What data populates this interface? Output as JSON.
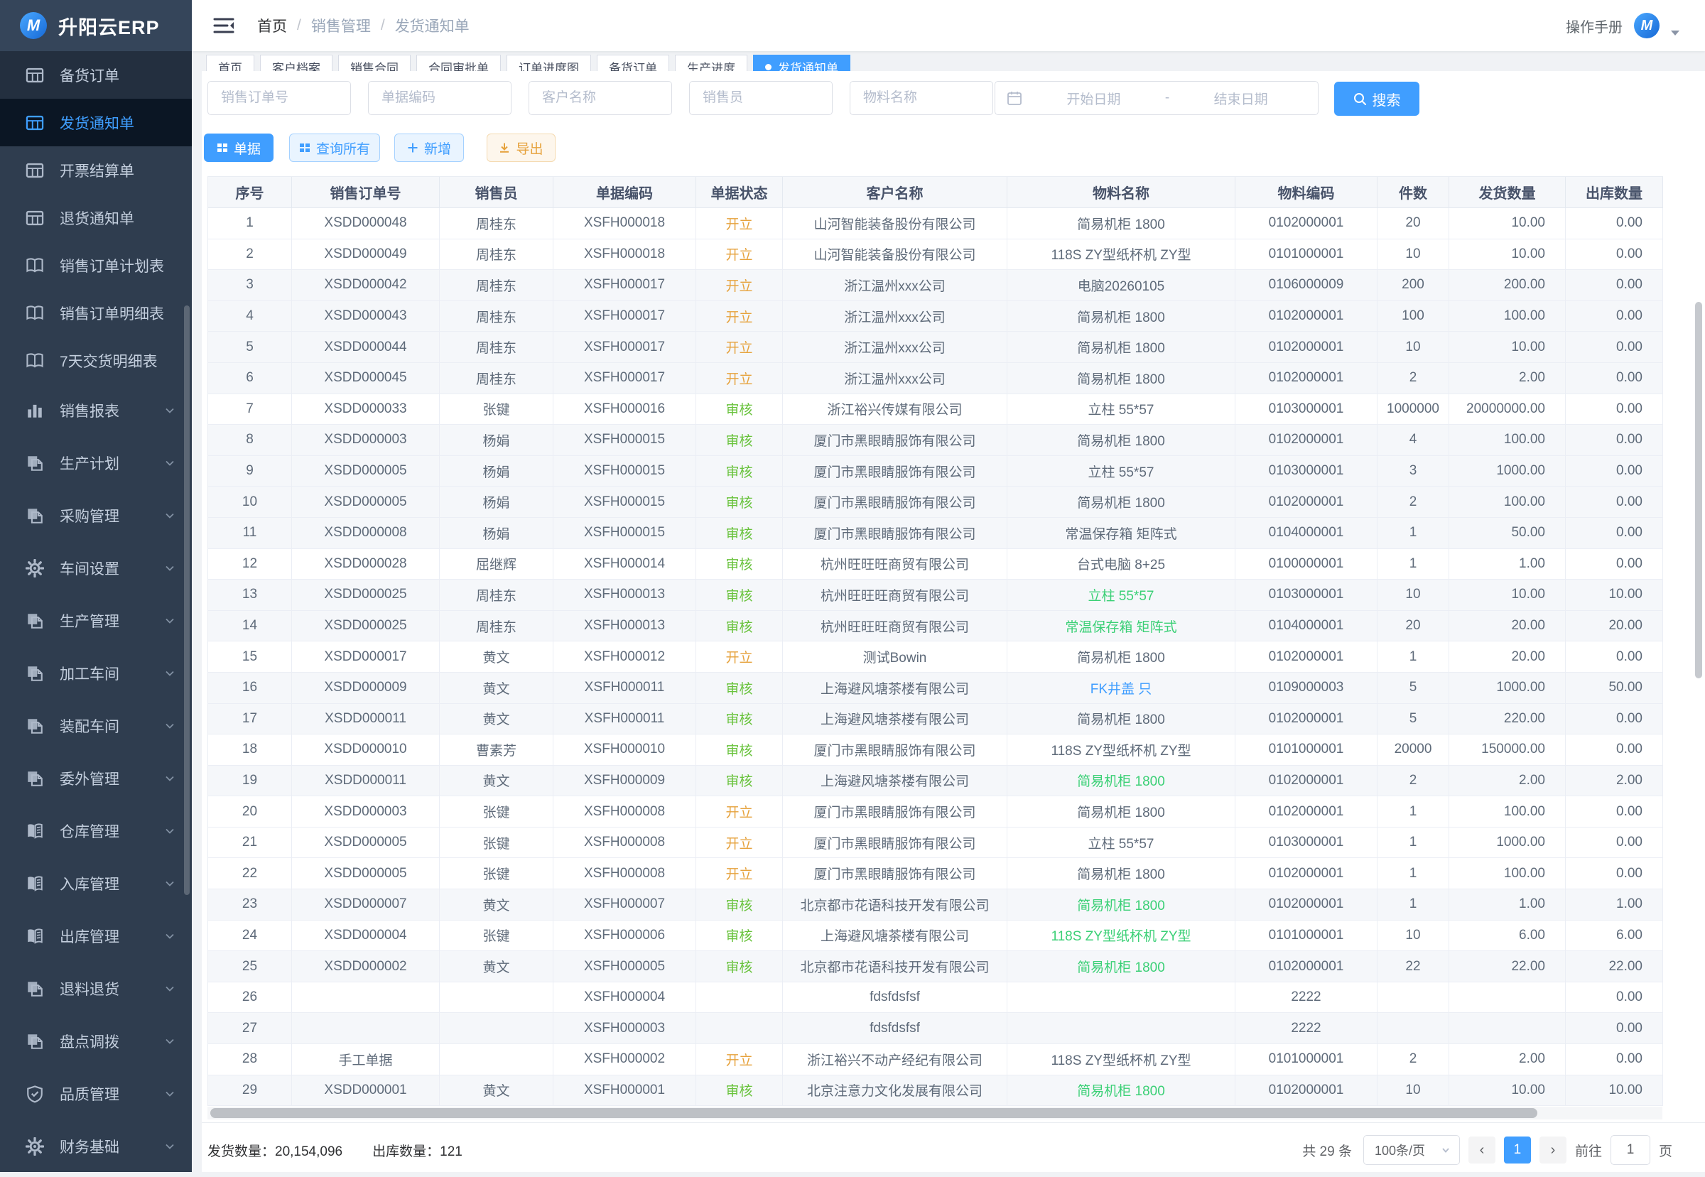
{
  "app": {
    "logo_text": "升阳云ERP",
    "logo_monogram": "M"
  },
  "sidebar": {
    "items": [
      {
        "id": "stock-orders",
        "label": "备货订单",
        "icon": "table-icon",
        "variant": "dark"
      },
      {
        "id": "shipping-notices",
        "label": "发货通知单",
        "icon": "table-icon",
        "active": true
      },
      {
        "id": "invoice-settlement",
        "label": "开票结算单",
        "icon": "table-icon"
      },
      {
        "id": "return-notices",
        "label": "退货通知单",
        "icon": "table-icon"
      },
      {
        "id": "sales-order-plan",
        "label": "销售订单计划表",
        "icon": "book-icon"
      },
      {
        "id": "sales-order-detail",
        "label": "销售订单明细表",
        "icon": "book-icon"
      },
      {
        "id": "seven-day-delivery",
        "label": "7天交货明细表",
        "icon": "book-icon"
      },
      {
        "id": "sales-report",
        "label": "销售报表",
        "icon": "chart-icon",
        "expandable": true
      },
      {
        "id": "production-plan",
        "label": "生产计划",
        "icon": "copy-icon",
        "expandable": true
      },
      {
        "id": "purchase-mgmt",
        "label": "采购管理",
        "icon": "copy-icon",
        "expandable": true
      },
      {
        "id": "workshop-settings",
        "label": "车间设置",
        "icon": "gear-icon",
        "expandable": true
      },
      {
        "id": "production-mgmt",
        "label": "生产管理",
        "icon": "copy-icon",
        "expandable": true
      },
      {
        "id": "processing-workshop",
        "label": "加工车间",
        "icon": "copy-icon",
        "expandable": true
      },
      {
        "id": "assembly-workshop",
        "label": "装配车间",
        "icon": "copy-icon",
        "expandable": true
      },
      {
        "id": "outsourcing-mgmt",
        "label": "委外管理",
        "icon": "copy-icon",
        "expandable": true
      },
      {
        "id": "warehouse-mgmt",
        "label": "仓库管理",
        "icon": "journal-icon",
        "expandable": true
      },
      {
        "id": "inbound-mgmt",
        "label": "入库管理",
        "icon": "journal-icon",
        "expandable": true
      },
      {
        "id": "outbound-mgmt",
        "label": "出库管理",
        "icon": "journal-icon",
        "expandable": true
      },
      {
        "id": "material-return",
        "label": "退料退货",
        "icon": "copy-icon",
        "expandable": true
      },
      {
        "id": "stocktake-transfer",
        "label": "盘点调拨",
        "icon": "copy-icon",
        "expandable": true
      },
      {
        "id": "quality-mgmt",
        "label": "品质管理",
        "icon": "shield-icon",
        "expandable": true
      },
      {
        "id": "finance-basic",
        "label": "财务基础",
        "icon": "gear-icon",
        "expandable": true
      }
    ]
  },
  "header": {
    "breadcrumb": [
      "首页",
      "销售管理",
      "发货通知单"
    ],
    "separator": "/",
    "manual_label": "操作手册"
  },
  "tabs": [
    {
      "id": "tab-home",
      "label": "首页"
    },
    {
      "id": "tab-customer-files",
      "label": "客户档案"
    },
    {
      "id": "tab-sales-contract",
      "label": "销售合同"
    },
    {
      "id": "tab-contract-approval",
      "label": "合同审批单"
    },
    {
      "id": "tab-order-progress",
      "label": "订单进度图"
    },
    {
      "id": "tab-stock-orders",
      "label": "备货订单"
    },
    {
      "id": "tab-production-progress",
      "label": "生产进度"
    },
    {
      "id": "tab-shipping-notices",
      "label": "发货通知单",
      "active": true
    }
  ],
  "filters": {
    "inputs": [
      {
        "id": "sales-order-no",
        "placeholder": "销售订单号"
      },
      {
        "id": "doc-code",
        "placeholder": "单据编码"
      },
      {
        "id": "customer-name",
        "placeholder": "客户名称"
      },
      {
        "id": "salesperson",
        "placeholder": "销售员"
      },
      {
        "id": "material-name",
        "placeholder": "物料名称"
      }
    ],
    "date_start_placeholder": "开始日期",
    "date_separator": "-",
    "date_end_placeholder": "结束日期",
    "search_label": "搜索"
  },
  "toolbar": [
    {
      "id": "doc-button",
      "label": "单据",
      "style": "primary",
      "icon": "grid-icon"
    },
    {
      "id": "query-all-button",
      "label": "查询所有",
      "style": "lightblue",
      "icon": "grid-icon"
    },
    {
      "id": "add-button",
      "label": "新增",
      "style": "lightblue",
      "icon": "plus-icon"
    },
    {
      "id": "export-button",
      "label": "导出",
      "style": "lightyellow",
      "icon": "download-icon"
    }
  ],
  "table": {
    "columns": [
      "序号",
      "销售订单号",
      "销售员",
      "单据编码",
      "单据状态",
      "客户名称",
      "物料名称",
      "物料编码",
      "件数",
      "发货数量",
      "出库数量"
    ],
    "rows": [
      {
        "seq": "1",
        "order": "XSDD000048",
        "seller": "周桂东",
        "doc": "XSFH000018",
        "status": "开立",
        "customer": "山河智能装备股份有限公司",
        "material": "简易机柜 1800",
        "mstyle": "default",
        "code": "0102000001",
        "pieces": "20",
        "ship": "10.00",
        "out": "0.00"
      },
      {
        "seq": "2",
        "order": "XSDD000049",
        "seller": "周桂东",
        "doc": "XSFH000018",
        "status": "开立",
        "customer": "山河智能装备股份有限公司",
        "material": "118S ZY型纸杯机 ZY型",
        "mstyle": "default",
        "code": "0101000001",
        "pieces": "10",
        "ship": "10.00",
        "out": "0.00"
      },
      {
        "seq": "3",
        "order": "XSDD000042",
        "seller": "周桂东",
        "doc": "XSFH000017",
        "status": "开立",
        "customer": "浙江温州xxx公司",
        "material": "电脑20260105",
        "mstyle": "default",
        "code": "0106000009",
        "pieces": "200",
        "ship": "200.00",
        "out": "0.00"
      },
      {
        "seq": "4",
        "order": "XSDD000043",
        "seller": "周桂东",
        "doc": "XSFH000017",
        "status": "开立",
        "customer": "浙江温州xxx公司",
        "material": "简易机柜 1800",
        "mstyle": "default",
        "code": "0102000001",
        "pieces": "100",
        "ship": "100.00",
        "out": "0.00"
      },
      {
        "seq": "5",
        "order": "XSDD000044",
        "seller": "周桂东",
        "doc": "XSFH000017",
        "status": "开立",
        "customer": "浙江温州xxx公司",
        "material": "简易机柜 1800",
        "mstyle": "default",
        "code": "0102000001",
        "pieces": "10",
        "ship": "10.00",
        "out": "0.00"
      },
      {
        "seq": "6",
        "order": "XSDD000045",
        "seller": "周桂东",
        "doc": "XSFH000017",
        "status": "开立",
        "customer": "浙江温州xxx公司",
        "material": "简易机柜 1800",
        "mstyle": "default",
        "code": "0102000001",
        "pieces": "2",
        "ship": "2.00",
        "out": "0.00"
      },
      {
        "seq": "7",
        "order": "XSDD000033",
        "seller": "张键",
        "doc": "XSFH000016",
        "status": "审核",
        "customer": "浙江裕兴传媒有限公司",
        "material": "立柱 55*57",
        "mstyle": "default",
        "code": "0103000001",
        "pieces": "1000000",
        "ship": "20000000.00",
        "out": "0.00"
      },
      {
        "seq": "8",
        "order": "XSDD000003",
        "seller": "杨娟",
        "doc": "XSFH000015",
        "status": "审核",
        "customer": "厦门市黑眼睛服饰有限公司",
        "material": "简易机柜 1800",
        "mstyle": "default",
        "code": "0102000001",
        "pieces": "4",
        "ship": "100.00",
        "out": "0.00"
      },
      {
        "seq": "9",
        "order": "XSDD000005",
        "seller": "杨娟",
        "doc": "XSFH000015",
        "status": "审核",
        "customer": "厦门市黑眼睛服饰有限公司",
        "material": "立柱 55*57",
        "mstyle": "default",
        "code": "0103000001",
        "pieces": "3",
        "ship": "1000.00",
        "out": "0.00"
      },
      {
        "seq": "10",
        "order": "XSDD000005",
        "seller": "杨娟",
        "doc": "XSFH000015",
        "status": "审核",
        "customer": "厦门市黑眼睛服饰有限公司",
        "material": "简易机柜 1800",
        "mstyle": "default",
        "code": "0102000001",
        "pieces": "2",
        "ship": "100.00",
        "out": "0.00"
      },
      {
        "seq": "11",
        "order": "XSDD000008",
        "seller": "杨娟",
        "doc": "XSFH000015",
        "status": "审核",
        "customer": "厦门市黑眼睛服饰有限公司",
        "material": "常温保存箱 矩阵式",
        "mstyle": "default",
        "code": "0104000001",
        "pieces": "1",
        "ship": "50.00",
        "out": "0.00"
      },
      {
        "seq": "12",
        "order": "XSDD000028",
        "seller": "屈继辉",
        "doc": "XSFH000014",
        "status": "审核",
        "customer": "杭州旺旺旺商贸有限公司",
        "material": "台式电脑 8+25",
        "mstyle": "default",
        "code": "0100000001",
        "pieces": "1",
        "ship": "1.00",
        "out": "0.00"
      },
      {
        "seq": "13",
        "order": "XSDD000025",
        "seller": "周桂东",
        "doc": "XSFH000013",
        "status": "审核",
        "customer": "杭州旺旺旺商贸有限公司",
        "material": "立柱 55*57",
        "mstyle": "green",
        "code": "0103000001",
        "pieces": "10",
        "ship": "10.00",
        "out": "10.00"
      },
      {
        "seq": "14",
        "order": "XSDD000025",
        "seller": "周桂东",
        "doc": "XSFH000013",
        "status": "审核",
        "customer": "杭州旺旺旺商贸有限公司",
        "material": "常温保存箱 矩阵式",
        "mstyle": "green",
        "code": "0104000001",
        "pieces": "20",
        "ship": "20.00",
        "out": "20.00"
      },
      {
        "seq": "15",
        "order": "XSDD000017",
        "seller": "黄文",
        "doc": "XSFH000012",
        "status": "开立",
        "customer": "测试Bowin",
        "material": "简易机柜 1800",
        "mstyle": "default",
        "code": "0102000001",
        "pieces": "1",
        "ship": "20.00",
        "out": "0.00"
      },
      {
        "seq": "16",
        "order": "XSDD000009",
        "seller": "黄文",
        "doc": "XSFH000011",
        "status": "审核",
        "customer": "上海避风塘茶楼有限公司",
        "material": "FK井盖 只",
        "mstyle": "blue",
        "code": "0109000003",
        "pieces": "5",
        "ship": "1000.00",
        "out": "50.00"
      },
      {
        "seq": "17",
        "order": "XSDD000011",
        "seller": "黄文",
        "doc": "XSFH000011",
        "status": "审核",
        "customer": "上海避风塘茶楼有限公司",
        "material": "简易机柜 1800",
        "mstyle": "default",
        "code": "0102000001",
        "pieces": "5",
        "ship": "220.00",
        "out": "0.00"
      },
      {
        "seq": "18",
        "order": "XSDD000010",
        "seller": "曹素芳",
        "doc": "XSFH000010",
        "status": "审核",
        "customer": "厦门市黑眼睛服饰有限公司",
        "material": "118S ZY型纸杯机 ZY型",
        "mstyle": "default",
        "code": "0101000001",
        "pieces": "20000",
        "ship": "150000.00",
        "out": "0.00"
      },
      {
        "seq": "19",
        "order": "XSDD000011",
        "seller": "黄文",
        "doc": "XSFH000009",
        "status": "审核",
        "customer": "上海避风塘茶楼有限公司",
        "material": "简易机柜 1800",
        "mstyle": "green",
        "code": "0102000001",
        "pieces": "2",
        "ship": "2.00",
        "out": "2.00"
      },
      {
        "seq": "20",
        "order": "XSDD000003",
        "seller": "张键",
        "doc": "XSFH000008",
        "status": "开立",
        "customer": "厦门市黑眼睛服饰有限公司",
        "material": "简易机柜 1800",
        "mstyle": "default",
        "code": "0102000001",
        "pieces": "1",
        "ship": "100.00",
        "out": "0.00"
      },
      {
        "seq": "21",
        "order": "XSDD000005",
        "seller": "张键",
        "doc": "XSFH000008",
        "status": "开立",
        "customer": "厦门市黑眼睛服饰有限公司",
        "material": "立柱 55*57",
        "mstyle": "default",
        "code": "0103000001",
        "pieces": "1",
        "ship": "1000.00",
        "out": "0.00"
      },
      {
        "seq": "22",
        "order": "XSDD000005",
        "seller": "张键",
        "doc": "XSFH000008",
        "status": "开立",
        "customer": "厦门市黑眼睛服饰有限公司",
        "material": "简易机柜 1800",
        "mstyle": "default",
        "code": "0102000001",
        "pieces": "1",
        "ship": "100.00",
        "out": "0.00"
      },
      {
        "seq": "23",
        "order": "XSDD000007",
        "seller": "黄文",
        "doc": "XSFH000007",
        "status": "审核",
        "customer": "北京都市花语科技开发有限公司",
        "material": "简易机柜 1800",
        "mstyle": "green",
        "code": "0102000001",
        "pieces": "1",
        "ship": "1.00",
        "out": "1.00"
      },
      {
        "seq": "24",
        "order": "XSDD000004",
        "seller": "张键",
        "doc": "XSFH000006",
        "status": "审核",
        "customer": "上海避风塘茶楼有限公司",
        "material": "118S ZY型纸杯机 ZY型",
        "mstyle": "green",
        "code": "0101000001",
        "pieces": "10",
        "ship": "6.00",
        "out": "6.00"
      },
      {
        "seq": "25",
        "order": "XSDD000002",
        "seller": "黄文",
        "doc": "XSFH000005",
        "status": "审核",
        "customer": "北京都市花语科技开发有限公司",
        "material": "简易机柜 1800",
        "mstyle": "green",
        "code": "0102000001",
        "pieces": "22",
        "ship": "22.00",
        "out": "22.00"
      },
      {
        "seq": "26",
        "order": "",
        "seller": "",
        "doc": "XSFH000004",
        "status": "",
        "customer": "fdsfdsfsf",
        "material": "",
        "mstyle": "default",
        "code": "2222",
        "pieces": "",
        "ship": "",
        "out": "0.00"
      },
      {
        "seq": "27",
        "order": "",
        "seller": "",
        "doc": "XSFH000003",
        "status": "",
        "customer": "fdsfdsfsf",
        "material": "",
        "mstyle": "default",
        "code": "2222",
        "pieces": "",
        "ship": "",
        "out": "0.00"
      },
      {
        "seq": "28",
        "order": "手工单据",
        "seller": "",
        "doc": "XSFH000002",
        "status": "开立",
        "customer": "浙江裕兴不动产经纪有限公司",
        "material": "118S ZY型纸杯机 ZY型",
        "mstyle": "default",
        "code": "0101000001",
        "pieces": "2",
        "ship": "2.00",
        "out": "0.00"
      },
      {
        "seq": "29",
        "order": "XSDD000001",
        "seller": "黄文",
        "doc": "XSFH000001",
        "status": "审核",
        "customer": "北京注意力文化发展有限公司",
        "material": "简易机柜 1800",
        "mstyle": "green",
        "code": "0102000001",
        "pieces": "10",
        "ship": "10.00",
        "out": "10.00"
      }
    ]
  },
  "footer": {
    "ship_total_label": "发货数量：",
    "ship_total": "20,154,096",
    "out_total_label": "出库数量：",
    "out_total": "121",
    "total_count": "共 29 条",
    "page_size": "100条/页",
    "prev_glyph": "‹",
    "page": "1",
    "next_glyph": "›",
    "goto_label": "前往",
    "goto_value": "1",
    "goto_suffix": "页"
  },
  "colors": {
    "primary": "#409eff",
    "link": "#409eff",
    "sidebar_active_text": "#3f9eff",
    "status": {
      "开立": "#e6a23c",
      "审核": "#67c23a"
    },
    "material_green": "#3bd076",
    "material_blue": "#409eff",
    "material_default": "#5f6b7a"
  }
}
